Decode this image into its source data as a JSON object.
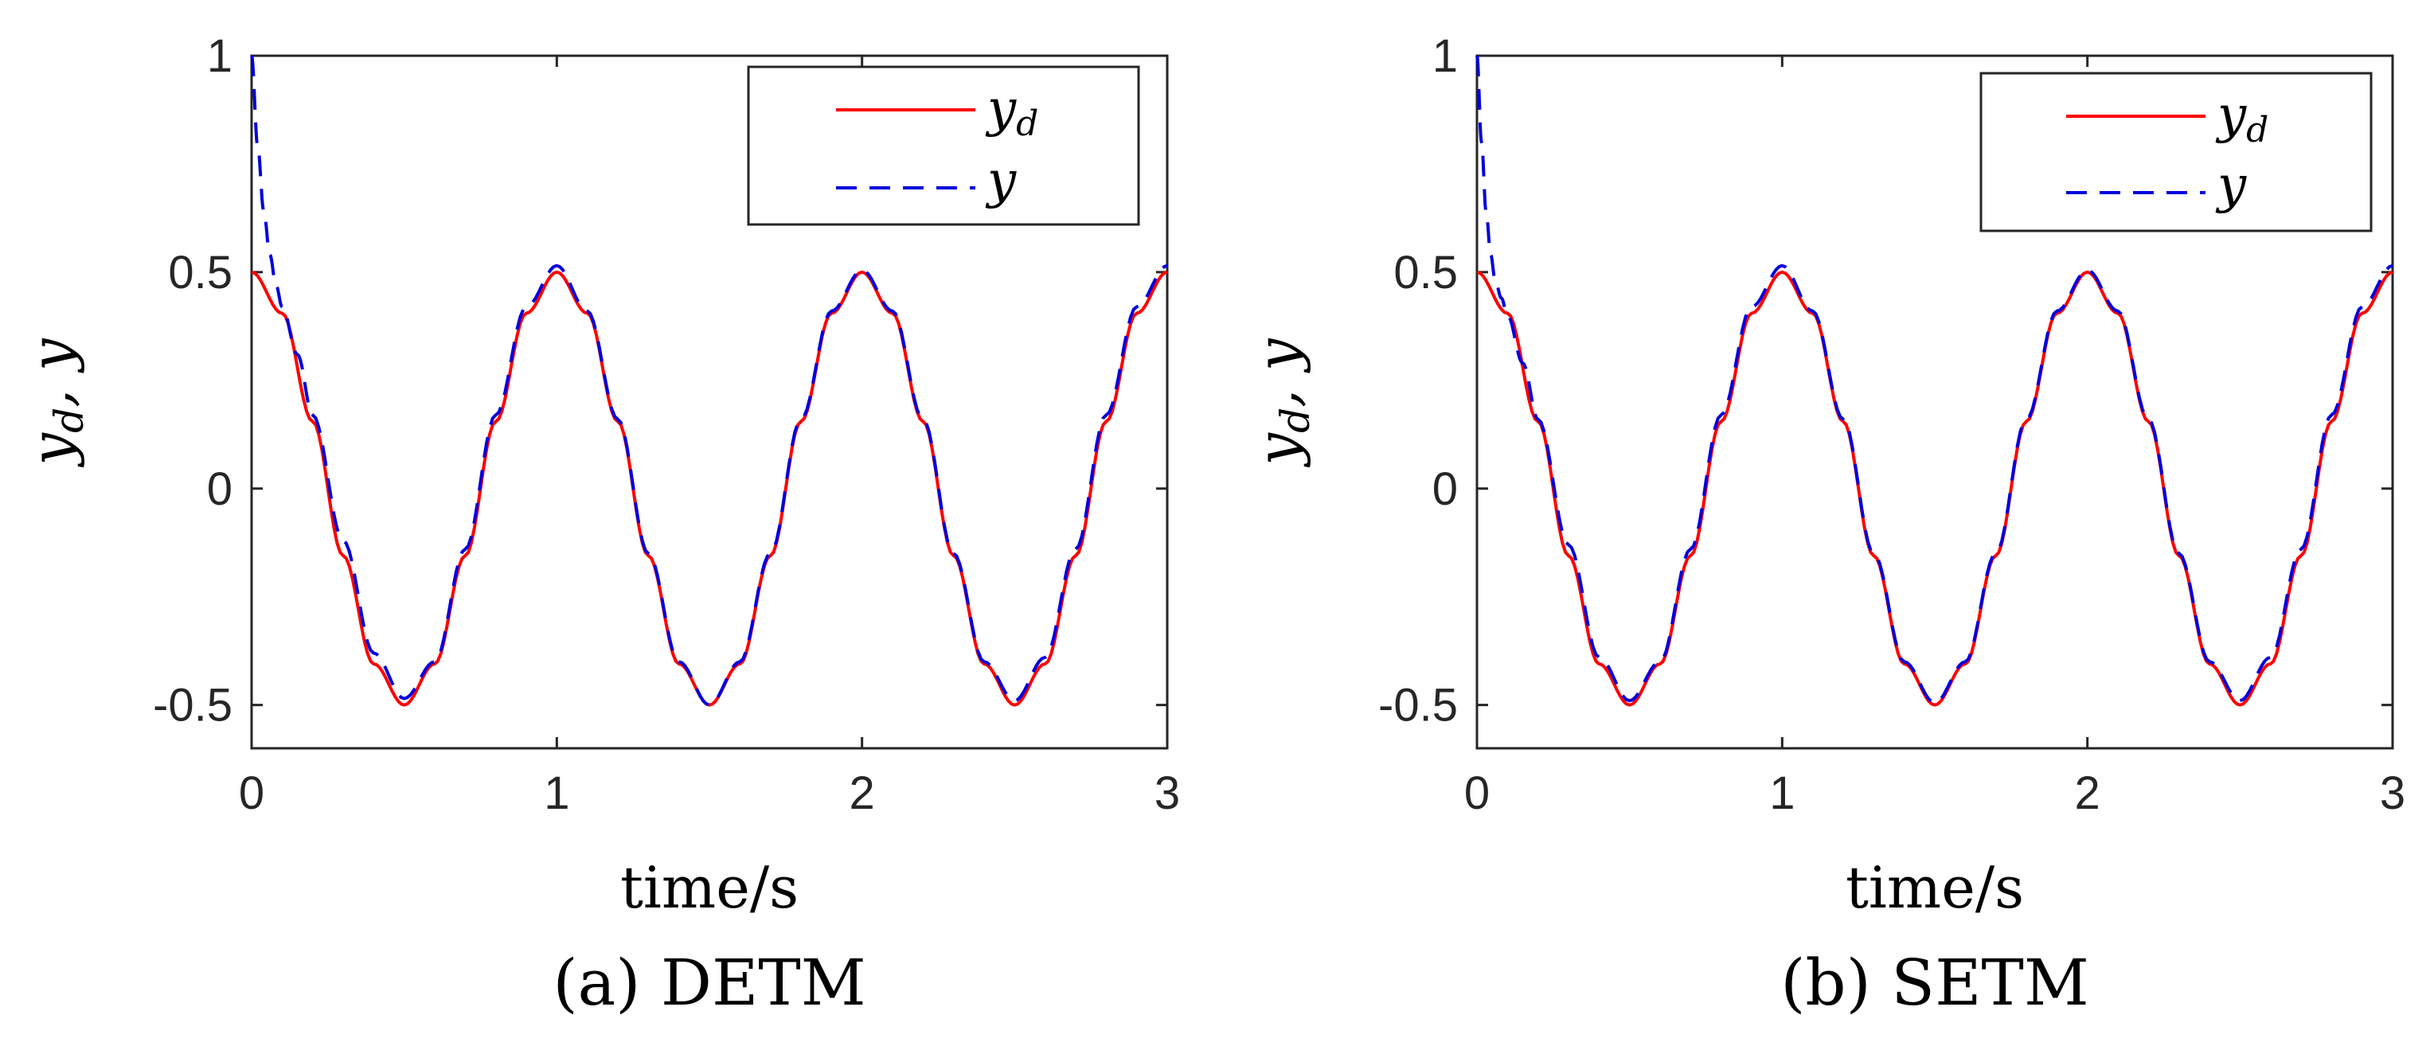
{
  "chart_data": [
    {
      "type": "line",
      "caption": "(a) DETM",
      "xlabel": "time/s",
      "ylabel_main": "y",
      "ylabel_sub": "d",
      "ylabel_tail": ", y",
      "xlim": [
        0,
        3
      ],
      "ylim": [
        -0.6,
        1
      ],
      "xticks": [
        0,
        1,
        2,
        3
      ],
      "xtick_labels": [
        "0",
        "1",
        "2",
        "3"
      ],
      "yticks": [
        -0.5,
        0,
        0.5,
        1
      ],
      "ytick_labels": [
        "-0.5",
        "0",
        "0.5",
        "1"
      ],
      "grid": false,
      "legend_position": "top-right",
      "series": [
        {
          "name": "y_d",
          "legend_main": "y",
          "legend_sub": "d",
          "color": "#ff0000",
          "style": "solid",
          "x": [
            0,
            0.1,
            0.2,
            0.3,
            0.4,
            0.5,
            0.6,
            0.7,
            0.8,
            0.9,
            1.0,
            1.1,
            1.2,
            1.3,
            1.4,
            1.5,
            1.6,
            1.7,
            1.8,
            1.9,
            2.0,
            2.1,
            2.2,
            2.3,
            2.4,
            2.5,
            2.6,
            2.7,
            2.8,
            2.9,
            3.0
          ],
          "y": [
            0.5,
            0.405,
            0.155,
            -0.155,
            -0.405,
            -0.5,
            -0.405,
            -0.155,
            0.155,
            0.405,
            0.5,
            0.405,
            0.155,
            -0.155,
            -0.405,
            -0.5,
            -0.405,
            -0.155,
            0.155,
            0.405,
            0.5,
            0.405,
            0.155,
            -0.155,
            -0.405,
            -0.5,
            -0.405,
            -0.155,
            0.155,
            0.405,
            0.5
          ]
        },
        {
          "name": "y",
          "legend_main": "y",
          "legend_sub": "",
          "color": "#0000dd",
          "style": "dashed",
          "x": [
            0,
            0.02,
            0.04,
            0.06,
            0.08,
            0.1,
            0.15,
            0.2,
            0.3,
            0.4,
            0.5,
            0.6,
            0.7,
            0.8,
            0.9,
            1.0,
            1.1,
            1.2,
            1.3,
            1.4,
            1.5,
            1.6,
            1.7,
            1.8,
            1.9,
            2.0,
            2.1,
            2.2,
            2.3,
            2.4,
            2.5,
            2.6,
            2.7,
            2.8,
            2.9,
            3.0
          ],
          "y": [
            1.0,
            0.79,
            0.64,
            0.54,
            0.47,
            0.42,
            0.31,
            0.17,
            -0.12,
            -0.38,
            -0.485,
            -0.4,
            -0.14,
            0.17,
            0.42,
            0.515,
            0.41,
            0.16,
            -0.15,
            -0.4,
            -0.5,
            -0.4,
            -0.15,
            0.16,
            0.41,
            0.505,
            0.41,
            0.16,
            -0.15,
            -0.4,
            -0.49,
            -0.39,
            -0.14,
            0.17,
            0.42,
            0.515
          ]
        }
      ]
    },
    {
      "type": "line",
      "caption": "(b) SETM",
      "xlabel": "time/s",
      "ylabel_main": "y",
      "ylabel_sub": "d",
      "ylabel_tail": ", y",
      "xlim": [
        0,
        3
      ],
      "ylim": [
        -0.6,
        1
      ],
      "xticks": [
        0,
        1,
        2,
        3
      ],
      "xtick_labels": [
        "0",
        "1",
        "2",
        "3"
      ],
      "yticks": [
        -0.5,
        0,
        0.5,
        1
      ],
      "ytick_labels": [
        "-0.5",
        "0",
        "0.5",
        "1"
      ],
      "grid": false,
      "legend_position": "top-right",
      "series": [
        {
          "name": "y_d",
          "legend_main": "y",
          "legend_sub": "d",
          "color": "#ff0000",
          "style": "solid",
          "x": [
            0,
            0.1,
            0.2,
            0.3,
            0.4,
            0.5,
            0.6,
            0.7,
            0.8,
            0.9,
            1.0,
            1.1,
            1.2,
            1.3,
            1.4,
            1.5,
            1.6,
            1.7,
            1.8,
            1.9,
            2.0,
            2.1,
            2.2,
            2.3,
            2.4,
            2.5,
            2.6,
            2.7,
            2.8,
            2.9,
            3.0
          ],
          "y": [
            0.5,
            0.405,
            0.155,
            -0.155,
            -0.405,
            -0.5,
            -0.405,
            -0.155,
            0.155,
            0.405,
            0.5,
            0.405,
            0.155,
            -0.155,
            -0.405,
            -0.5,
            -0.405,
            -0.155,
            0.155,
            0.405,
            0.5,
            0.405,
            0.155,
            -0.155,
            -0.405,
            -0.5,
            -0.405,
            -0.155,
            0.155,
            0.405,
            0.5
          ]
        },
        {
          "name": "y",
          "legend_main": "y",
          "legend_sub": "",
          "color": "#0000dd",
          "style": "dashed",
          "x": [
            0,
            0.015,
            0.03,
            0.045,
            0.06,
            0.08,
            0.1,
            0.15,
            0.2,
            0.3,
            0.4,
            0.5,
            0.6,
            0.7,
            0.8,
            0.9,
            1.0,
            1.1,
            1.2,
            1.3,
            1.4,
            1.5,
            1.6,
            1.7,
            1.8,
            1.9,
            2.0,
            2.1,
            2.2,
            2.3,
            2.4,
            2.5,
            2.6,
            2.7,
            2.8,
            2.9,
            3.0
          ],
          "y": [
            1.0,
            0.8,
            0.64,
            0.54,
            0.48,
            0.44,
            0.4,
            0.29,
            0.16,
            -0.13,
            -0.39,
            -0.49,
            -0.4,
            -0.14,
            0.17,
            0.42,
            0.515,
            0.41,
            0.16,
            -0.15,
            -0.4,
            -0.495,
            -0.4,
            -0.15,
            0.16,
            0.41,
            0.505,
            0.41,
            0.16,
            -0.15,
            -0.4,
            -0.49,
            -0.39,
            -0.14,
            0.17,
            0.42,
            0.515
          ]
        }
      ]
    }
  ]
}
